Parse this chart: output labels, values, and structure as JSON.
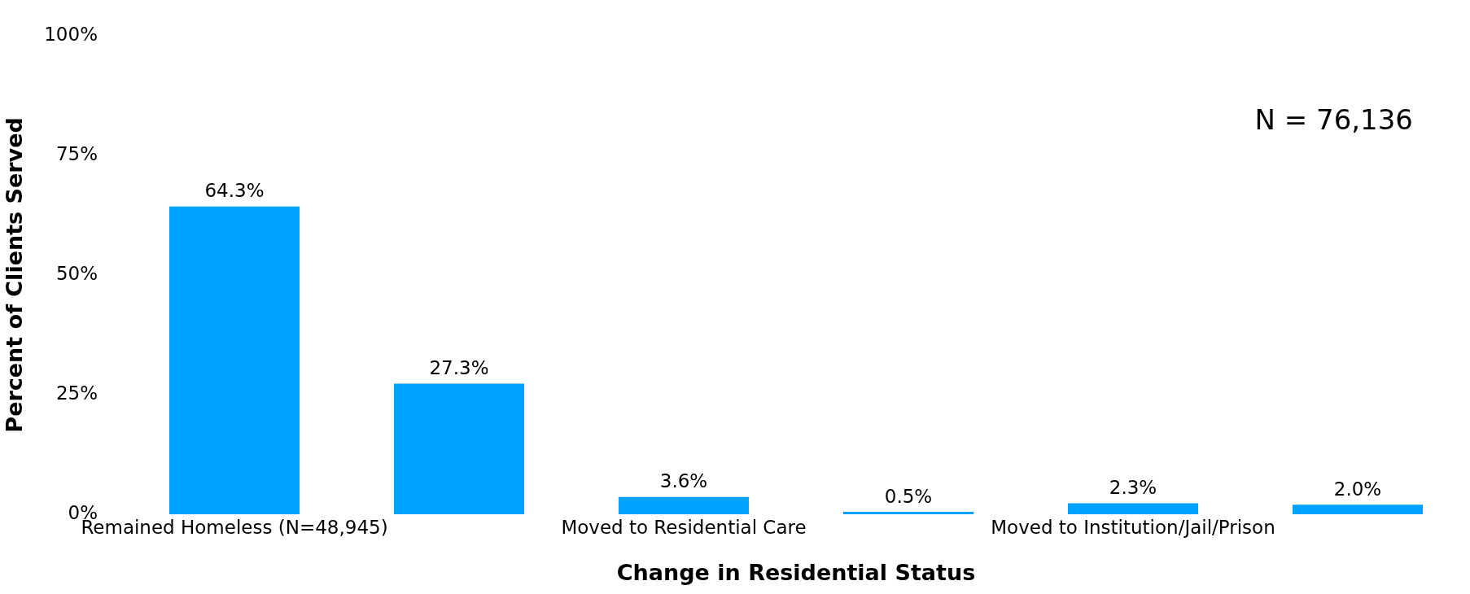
{
  "chart_data": {
    "type": "bar",
    "xlabel": "Change in Residential Status",
    "ylabel": "Percent of Clients Served",
    "categories": [
      "Remained Homeless (N=48,945)",
      null,
      "Moved to Residential Care",
      null,
      "Moved to Institution/Jail/Prison",
      null
    ],
    "values": [
      64.3,
      27.3,
      3.6,
      0.5,
      2.3,
      2.0
    ],
    "value_labels": [
      "64.3%",
      "27.3%",
      "3.6%",
      "0.5%",
      "2.3%",
      "2.0%"
    ],
    "color": "#00a2ff",
    "ylim": [
      0,
      100
    ],
    "yticks": [
      {
        "value": 0,
        "label": "0%"
      },
      {
        "value": 25,
        "label": "25%"
      },
      {
        "value": 50,
        "label": "50%"
      },
      {
        "value": 75,
        "label": "75%"
      },
      {
        "value": 100,
        "label": "100%"
      }
    ],
    "grid": false,
    "legend": false,
    "annotations": [
      "N = 76,136"
    ]
  }
}
